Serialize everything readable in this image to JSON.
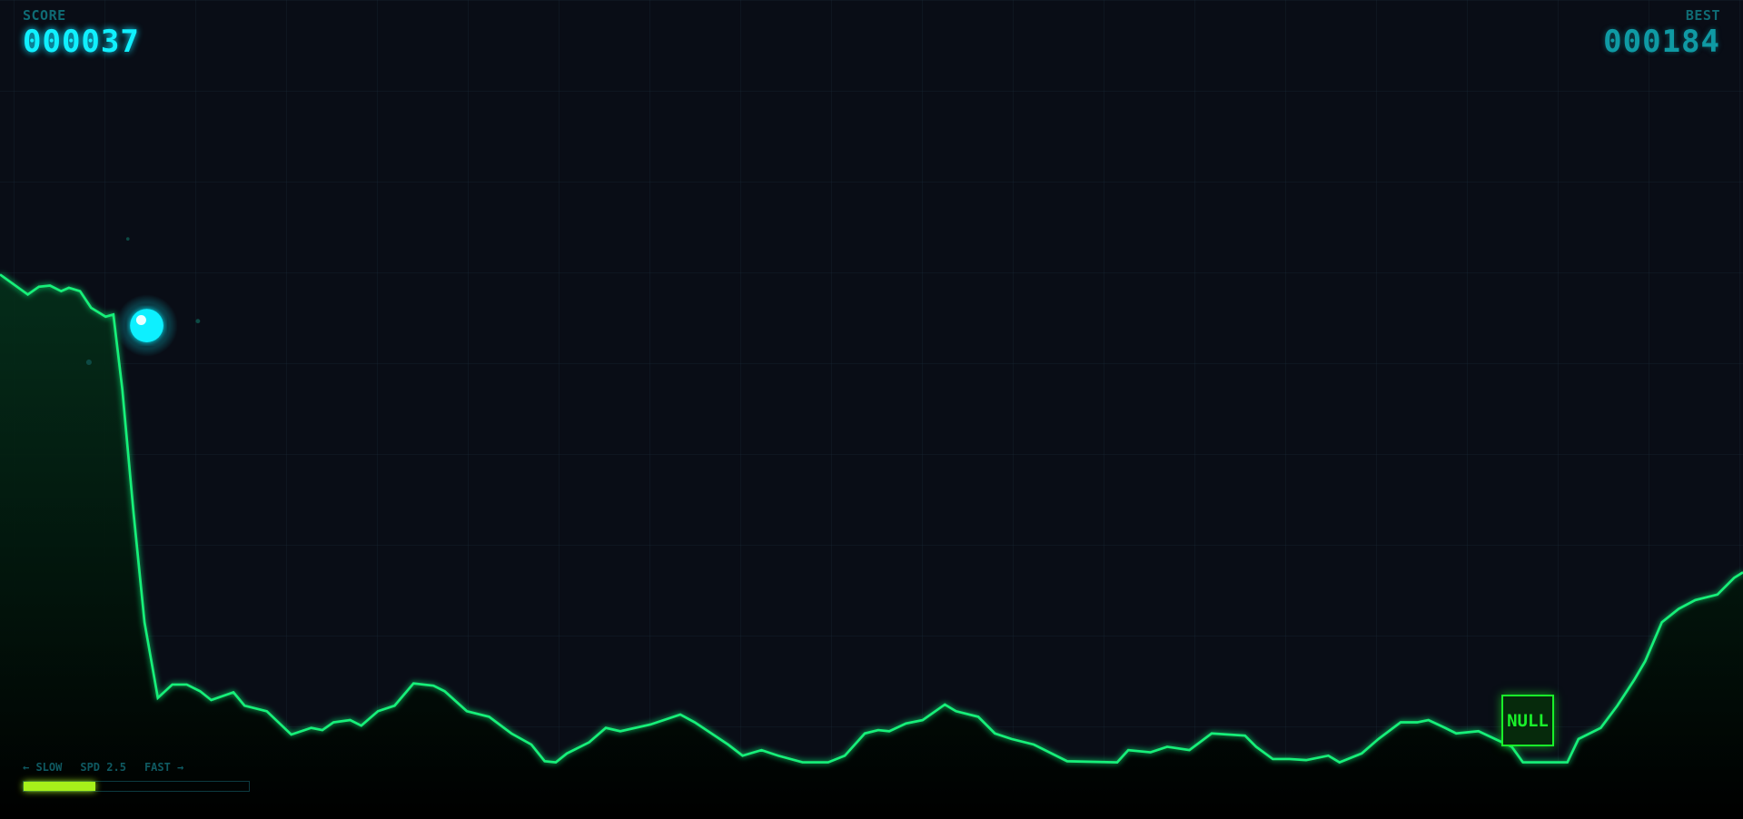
{
  "hud": {
    "score_label": "SCORE",
    "score_value": "000037",
    "best_label": "BEST",
    "best_value": "000184"
  },
  "speed": {
    "slow_label": "← SLOW",
    "value_label": "SPD 2.5",
    "fast_label": "FAST →",
    "fill_fraction": 0.32
  },
  "obstacle": {
    "label": "NULL"
  },
  "colors": {
    "background": "#090d16",
    "terrain_line": "#19f07a",
    "player": "#10f0ff",
    "speed_fill": "#a6f01a",
    "obstacle": "#19f02a"
  }
}
